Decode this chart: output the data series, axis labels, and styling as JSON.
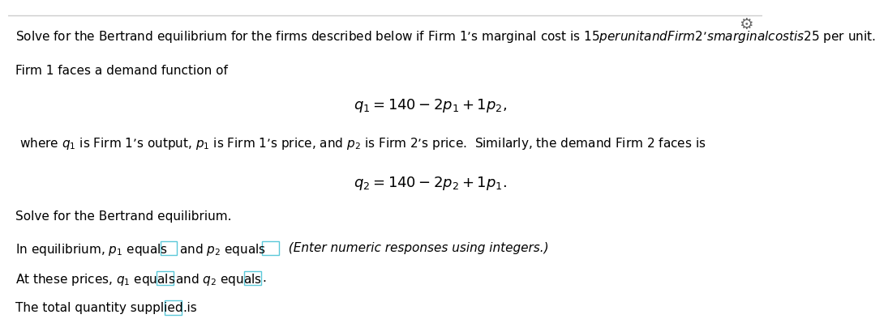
{
  "bg_color": "#ffffff",
  "line_color": "#cccccc",
  "text_color": "#000000",
  "gear_color": "#666666",
  "box_color": "#5bc8d9",
  "line1": "Solve for the Bertrand equilibrium for the firms described below if Firm 1’s marginal cost is $15 per unit and Firm 2’s marginal cost is $25 per unit.",
  "line2": "Firm 1 faces a demand function of",
  "line3_text": "where $q_1$ is Firm 1’s output, $p_1$ is Firm 1’s price, and $p_2$ is Firm 2’s price.  Similarly, the demand Firm 2 faces is",
  "eq1": "$q_1 = 140 - 2p_1 + 1p_2,$",
  "eq2": "$q_2 = 140 - 2p_2 + 1p_1.$",
  "line4": "Solve for the Bertrand equilibrium.",
  "line5a": "In equilibrium, $p_1$ equals",
  "line5c": "and $p_2$ equals",
  "line5e": "  (Enter numeric responses using integers.)",
  "line6a": "At these prices, $q_1$ equals",
  "line6c": "and $q_2$ equals",
  "line6e": ".",
  "line7a": "The total quantity supplied is",
  "line7b": ".",
  "fontsize": 11,
  "eq_fontsize": 13
}
